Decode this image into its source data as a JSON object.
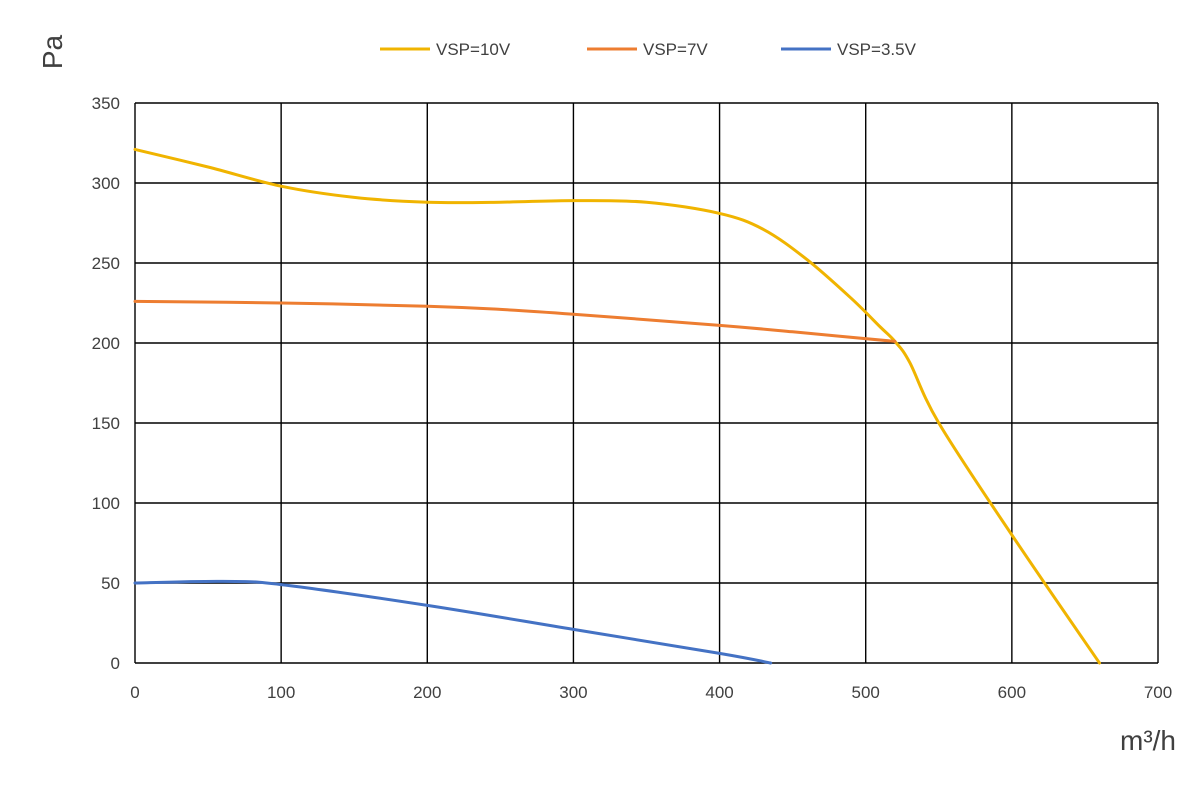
{
  "chart_data": {
    "type": "line",
    "title": "",
    "xlabel": "m³/h",
    "ylabel": "Pa",
    "xlim": [
      0,
      700
    ],
    "ylim": [
      0,
      350
    ],
    "x_ticks": [
      "0",
      "100",
      "200",
      "300",
      "400",
      "500",
      "600",
      "700"
    ],
    "y_ticks": [
      "0",
      "50",
      "100",
      "150",
      "200",
      "250",
      "300",
      "350"
    ],
    "grid": true,
    "legend_position": "top-center",
    "series": [
      {
        "name": "VSP=10V",
        "color": "#f0b400",
        "points": [
          [
            0,
            321
          ],
          [
            50,
            310
          ],
          [
            100,
            298
          ],
          [
            150,
            291
          ],
          [
            200,
            288
          ],
          [
            250,
            288
          ],
          [
            300,
            289
          ],
          [
            350,
            288
          ],
          [
            400,
            281
          ],
          [
            430,
            271
          ],
          [
            460,
            252
          ],
          [
            490,
            228
          ],
          [
            510,
            210
          ],
          [
            520,
            201
          ],
          [
            530,
            188
          ],
          [
            550,
            150
          ],
          [
            600,
            80
          ],
          [
            660,
            0
          ]
        ]
      },
      {
        "name": "VSP=7V",
        "color": "#ed7d31",
        "points": [
          [
            0,
            226
          ],
          [
            100,
            225
          ],
          [
            200,
            223
          ],
          [
            250,
            221
          ],
          [
            300,
            218
          ],
          [
            400,
            211
          ],
          [
            450,
            207
          ],
          [
            520,
            201
          ]
        ]
      },
      {
        "name": "VSP=3.5V",
        "color": "#4472c4",
        "points": [
          [
            0,
            50
          ],
          [
            60,
            51
          ],
          [
            100,
            49
          ],
          [
            200,
            36
          ],
          [
            300,
            21
          ],
          [
            400,
            6
          ],
          [
            435,
            0
          ]
        ]
      }
    ]
  }
}
